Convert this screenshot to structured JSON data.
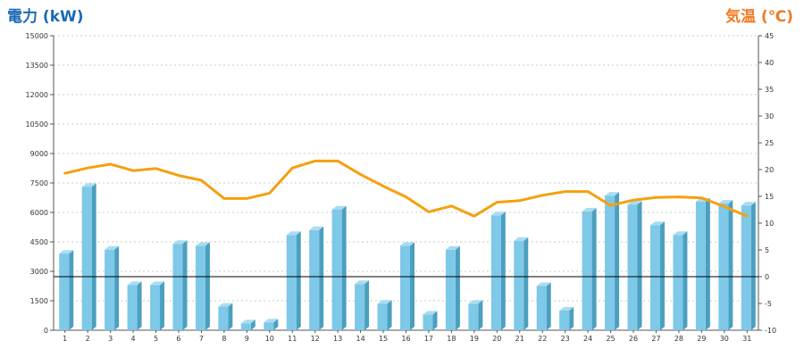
{
  "chart_data": {
    "type": "bar",
    "categories": [
      "1",
      "2",
      "3",
      "4",
      "5",
      "6",
      "7",
      "8",
      "9",
      "10",
      "11",
      "12",
      "13",
      "14",
      "15",
      "16",
      "17",
      "18",
      "19",
      "20",
      "21",
      "22",
      "23",
      "24",
      "25",
      "26",
      "27",
      "28",
      "29",
      "30",
      "31"
    ],
    "series": [
      {
        "type": "bar",
        "axis": "left",
        "color": "#7ec8e8",
        "values": [
          3900,
          7300,
          4100,
          2300,
          2300,
          4400,
          4300,
          1200,
          350,
          400,
          4850,
          5100,
          6150,
          2350,
          1350,
          4300,
          800,
          4100,
          1350,
          5850,
          4550,
          2250,
          1000,
          6050,
          6850,
          6400,
          5350,
          4850,
          6550,
          6450,
          6350
        ]
      },
      {
        "type": "line",
        "axis": "right",
        "color": "#f5a00f",
        "values": [
          19.3,
          20.3,
          21.0,
          19.8,
          20.2,
          18.9,
          18.0,
          14.6,
          14.6,
          15.6,
          20.3,
          21.6,
          21.6,
          19.1,
          16.9,
          14.9,
          12.1,
          13.2,
          11.3,
          13.9,
          14.2,
          15.2,
          15.9,
          15.9,
          13.3,
          14.3,
          14.8,
          14.9,
          14.7,
          13.1,
          11.3
        ]
      }
    ],
    "ylabel": "電力 (kW)",
    "y2label": "気温 (℃)",
    "ylim": [
      0,
      15000
    ],
    "y2lim": [
      -10,
      45
    ],
    "yticks": [
      "0",
      "1500",
      "3000",
      "4500",
      "6000",
      "7500",
      "9000",
      "10500",
      "12000",
      "13500",
      "15000"
    ],
    "y2ticks": [
      "-10",
      "-5",
      "0",
      "5",
      "10",
      "15",
      "20",
      "25",
      "30",
      "35",
      "40",
      "45"
    ],
    "zero_line": "temperature 0",
    "grid": true,
    "legend": "none",
    "colors": {
      "left_title": "#1a6ab5",
      "right_title": "#f07a22",
      "bar_front": "#7ec8e8",
      "bar_side": "#4b9fbf",
      "bar_top": "#a9dcf0",
      "line": "#f5a00f",
      "grid": "#bbbbbb"
    }
  }
}
